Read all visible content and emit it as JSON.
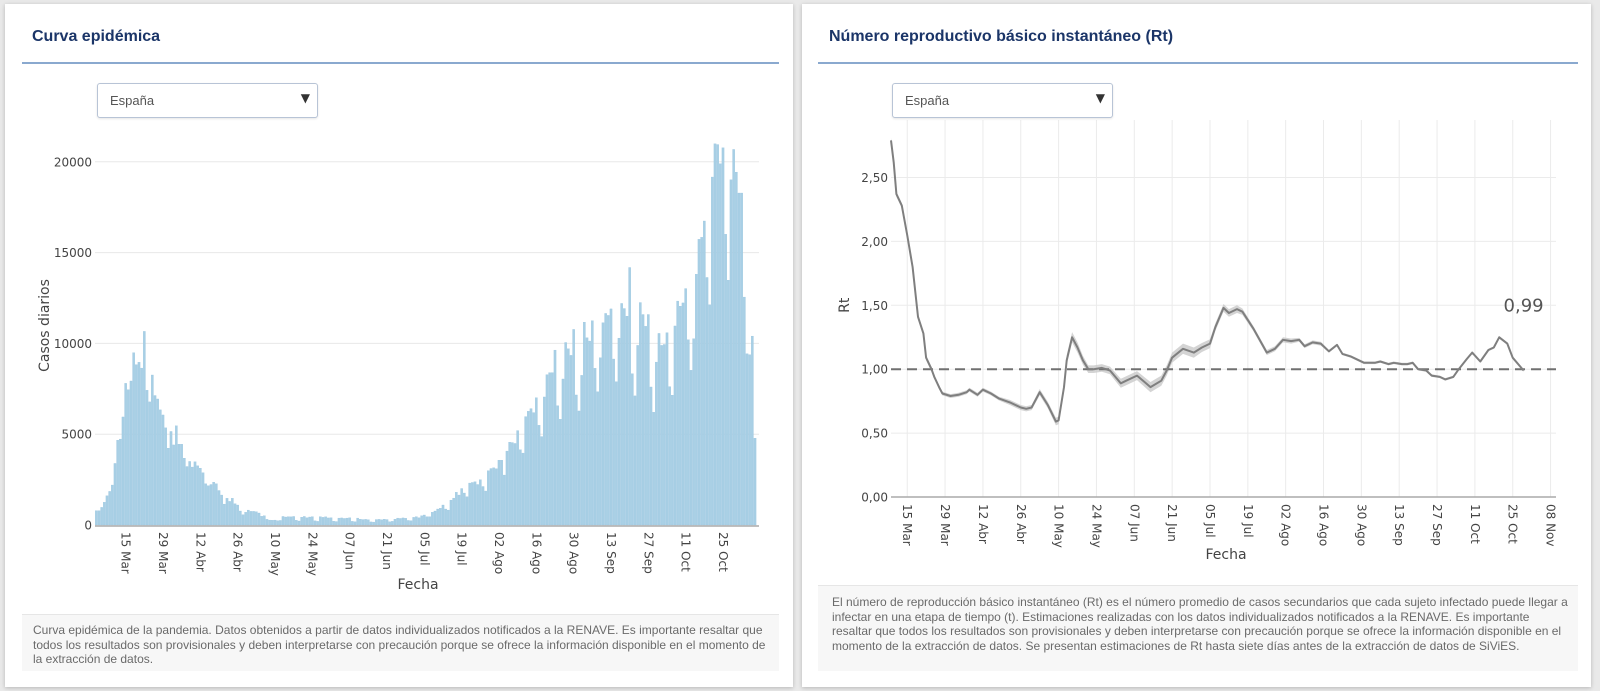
{
  "icons": {
    "dropdown_arrow": "▼"
  },
  "panels": [
    {
      "region_select": {
        "value": "España"
      },
      "caption": "Curva epidémica de la pandemia. Datos obtenidos a partir de datos individualizados notificados a la RENAVE. Es importante resaltar que todos los resultados son provisionales y deben interpretarse con precaución porque se ofrece la información disponible en el momento de la extracción de datos."
    },
    {
      "region_select": {
        "value": "España"
      },
      "caption": "El número de reproducción básico instantáneo (Rt) es el número promedio de casos secundarios que cada sujeto infectado puede llegar a infectar en una etapa de tiempo (t). Estimaciones realizadas con los datos individualizados notificados a la RENAVE. Es importante resaltar que todos los resultados son provisionales y deben interpretarse con precaución porque se ofrece la información disponible en el momento de la extracción de datos. Se presentan estimaciones de Rt hasta siete días antes de la extracción de datos de SiViES."
    }
  ],
  "chart_data": [
    {
      "type": "bar",
      "title": "Curva epidémica",
      "xlabel": "Fecha",
      "ylabel": "Casos diarios",
      "x_unit": "days since 04 Mar (one bar per day)",
      "xlim": [
        -0.5,
        248.5
      ],
      "ylim": [
        0,
        21200
      ],
      "grid": "horizontal",
      "bar_color": "#a8cfe5",
      "yticks": [
        {
          "value": 0,
          "label": "0"
        },
        {
          "value": 5000,
          "label": "5000"
        },
        {
          "value": 10000,
          "label": "10000"
        },
        {
          "value": 15000,
          "label": "15000"
        },
        {
          "value": 20000,
          "label": "20000"
        }
      ],
      "xticks": [
        {
          "day": 11,
          "label": "15 Mar"
        },
        {
          "day": 25,
          "label": "29 Mar"
        },
        {
          "day": 39,
          "label": "12 Abr"
        },
        {
          "day": 53,
          "label": "26 Abr"
        },
        {
          "day": 67,
          "label": "10 May"
        },
        {
          "day": 81,
          "label": "24 May"
        },
        {
          "day": 95,
          "label": "07 Jun"
        },
        {
          "day": 109,
          "label": "21 Jun"
        },
        {
          "day": 123,
          "label": "05 Jul"
        },
        {
          "day": 137,
          "label": "19 Jul"
        },
        {
          "day": 151,
          "label": "02 Ago"
        },
        {
          "day": 165,
          "label": "16 Ago"
        },
        {
          "day": 179,
          "label": "30 Ago"
        },
        {
          "day": 193,
          "label": "13 Sep"
        },
        {
          "day": 207,
          "label": "27 Sep"
        },
        {
          "day": 221,
          "label": "11 Oct"
        },
        {
          "day": 235,
          "label": "25 Oct"
        }
      ],
      "values": [
        790,
        790,
        970,
        1250,
        1610,
        1850,
        2200,
        3390,
        4670,
        4730,
        5950,
        7800,
        7450,
        7930,
        9490,
        8830,
        8960,
        8640,
        10660,
        7420,
        6780,
        8260,
        7130,
        6940,
        6340,
        6060,
        5350,
        4230,
        5150,
        4410,
        5460,
        4450,
        4450,
        3680,
        3220,
        3500,
        3190,
        3480,
        3260,
        3130,
        2880,
        2270,
        2160,
        2230,
        2360,
        2270,
        1900,
        1650,
        1150,
        1470,
        1300,
        1470,
        1170,
        1100,
        770,
        570,
        700,
        820,
        750,
        750,
        730,
        660,
        480,
        510,
        310,
        270,
        260,
        270,
        240,
        250,
        470,
        440,
        460,
        450,
        470,
        260,
        220,
        430,
        470,
        400,
        440,
        460,
        230,
        200,
        460,
        420,
        450,
        390,
        400,
        210,
        190,
        380,
        390,
        360,
        380,
        400,
        200,
        180,
        380,
        320,
        300,
        310,
        290,
        170,
        160,
        300,
        310,
        290,
        320,
        300,
        180,
        200,
        320,
        380,
        360,
        390,
        370,
        250,
        240,
        420,
        460,
        400,
        510,
        550,
        460,
        460,
        700,
        770,
        880,
        920,
        1100,
        880,
        820,
        1370,
        1480,
        1800,
        1650,
        2010,
        1760,
        1560,
        2310,
        2340,
        2380,
        2230,
        2490,
        2120,
        1870,
        2990,
        3110,
        3150,
        3100,
        3570,
        3570,
        2750,
        4070,
        4560,
        4540,
        4490,
        5200,
        4140,
        3960,
        5970,
        6260,
        6410,
        6190,
        7010,
        5490,
        4870,
        7050,
        8280,
        8390,
        8390,
        9630,
        6570,
        5820,
        8040,
        10050,
        9700,
        9340,
        10770,
        7160,
        6280,
        8240,
        11170,
        10310,
        10130,
        11250,
        8630,
        7340,
        9210,
        11140,
        11650,
        11540,
        11900,
        9140,
        7890,
        10290,
        12200,
        11920,
        11500,
        14180,
        8330,
        7110,
        9890,
        12250,
        11590,
        10940,
        11590,
        7600,
        6210,
        8970,
        10550,
        9890,
        9940,
        10590,
        7620,
        7150,
        10960,
        12330,
        12050,
        12230,
        13020,
        10200,
        8520,
        10260,
        13810,
        15730,
        15840,
        16740,
        13630,
        12130,
        19160,
        20990,
        20950,
        19890,
        20770,
        16010,
        13480,
        19010,
        20680,
        19430,
        18280,
        18280,
        12550,
        9430,
        9380,
        10400,
        4780
      ]
    },
    {
      "type": "line",
      "title": "Número reproductivo básico instantáneo (Rt)",
      "xlabel": "Fecha",
      "ylabel": "Rt",
      "x_unit": "days since 15 Mar",
      "xlim": [
        -6,
        240
      ],
      "ylim": [
        0,
        2.95
      ],
      "grid": "both",
      "line_color": "#7f7f7f",
      "band_color": "#c9c9c9",
      "reference_line": {
        "value": 1.0,
        "style": "dashed"
      },
      "annotation": {
        "text": "0,99",
        "anchor": "last-point"
      },
      "yticks": [
        {
          "value": 0,
          "label": "0,00"
        },
        {
          "value": 0.5,
          "label": "0,50"
        },
        {
          "value": 1.0,
          "label": "1,00"
        },
        {
          "value": 1.5,
          "label": "1,50"
        },
        {
          "value": 2.0,
          "label": "2,00"
        },
        {
          "value": 2.5,
          "label": "2,50"
        }
      ],
      "xticks": [
        {
          "day": 0,
          "label": "15 Mar"
        },
        {
          "day": 14,
          "label": "29 Mar"
        },
        {
          "day": 28,
          "label": "12 Abr"
        },
        {
          "day": 42,
          "label": "26 Abr"
        },
        {
          "day": 56,
          "label": "10 May"
        },
        {
          "day": 70,
          "label": "24 May"
        },
        {
          "day": 84,
          "label": "07 Jun"
        },
        {
          "day": 98,
          "label": "21 Jun"
        },
        {
          "day": 112,
          "label": "05 Jul"
        },
        {
          "day": 126,
          "label": "19 Jul"
        },
        {
          "day": 140,
          "label": "02 Ago"
        },
        {
          "day": 154,
          "label": "16 Ago"
        },
        {
          "day": 168,
          "label": "30 Ago"
        },
        {
          "day": 182,
          "label": "13 Sep"
        },
        {
          "day": 196,
          "label": "27 Sep"
        },
        {
          "day": 210,
          "label": "11 Oct"
        },
        {
          "day": 224,
          "label": "25 Oct"
        },
        {
          "day": 238,
          "label": "08 Nov"
        }
      ],
      "series": [
        {
          "name": "Rt",
          "points_format": "[day, rt, ci_halfwidth]",
          "points": [
            [
              -6,
              2.79,
              0.02
            ],
            [
              -5,
              2.62,
              0.02
            ],
            [
              -4,
              2.37,
              0.02
            ],
            [
              -2,
              2.28,
              0.02
            ],
            [
              0,
              2.05,
              0.02
            ],
            [
              2,
              1.8,
              0.02
            ],
            [
              4,
              1.41,
              0.02
            ],
            [
              6,
              1.28,
              0.02
            ],
            [
              7,
              1.09,
              0.02
            ],
            [
              9,
              1.0,
              0.02
            ],
            [
              10,
              0.94,
              0.015
            ],
            [
              12,
              0.85,
              0.015
            ],
            [
              13,
              0.81,
              0.015
            ],
            [
              16,
              0.79,
              0.015
            ],
            [
              19,
              0.8,
              0.015
            ],
            [
              22,
              0.82,
              0.015
            ],
            [
              23,
              0.84,
              0.015
            ],
            [
              26,
              0.8,
              0.015
            ],
            [
              28,
              0.84,
              0.015
            ],
            [
              31,
              0.81,
              0.015
            ],
            [
              34,
              0.77,
              0.015
            ],
            [
              38,
              0.74,
              0.02
            ],
            [
              42,
              0.7,
              0.02
            ],
            [
              44,
              0.69,
              0.02
            ],
            [
              46,
              0.7,
              0.02
            ],
            [
              49,
              0.82,
              0.025
            ],
            [
              52,
              0.72,
              0.025
            ],
            [
              55,
              0.59,
              0.03
            ],
            [
              56,
              0.6,
              0.03
            ],
            [
              58,
              0.86,
              0.035
            ],
            [
              59,
              1.07,
              0.04
            ],
            [
              61,
              1.25,
              0.04
            ],
            [
              63,
              1.17,
              0.04
            ],
            [
              65,
              1.07,
              0.035
            ],
            [
              67,
              1.0,
              0.03
            ],
            [
              69,
              1.0,
              0.03
            ],
            [
              72,
              1.01,
              0.03
            ],
            [
              75,
              0.99,
              0.03
            ],
            [
              79,
              0.89,
              0.035
            ],
            [
              81,
              0.91,
              0.035
            ],
            [
              85,
              0.95,
              0.035
            ],
            [
              90,
              0.86,
              0.04
            ],
            [
              94,
              0.91,
              0.04
            ],
            [
              96,
              0.99,
              0.04
            ],
            [
              98,
              1.09,
              0.04
            ],
            [
              102,
              1.16,
              0.04
            ],
            [
              106,
              1.13,
              0.04
            ],
            [
              109,
              1.17,
              0.035
            ],
            [
              112,
              1.2,
              0.035
            ],
            [
              114,
              1.33,
              0.03
            ],
            [
              117,
              1.48,
              0.03
            ],
            [
              119,
              1.44,
              0.03
            ],
            [
              122,
              1.47,
              0.03
            ],
            [
              124,
              1.45,
              0.025
            ],
            [
              128,
              1.32,
              0.02
            ],
            [
              133,
              1.13,
              0.02
            ],
            [
              136,
              1.16,
              0.02
            ],
            [
              139,
              1.23,
              0.02
            ],
            [
              142,
              1.22,
              0.02
            ],
            [
              145,
              1.23,
              0.015
            ],
            [
              147,
              1.18,
              0.015
            ],
            [
              150,
              1.21,
              0.015
            ],
            [
              153,
              1.2,
              0.015
            ],
            [
              156,
              1.14,
              0.01
            ],
            [
              159,
              1.19,
              0.01
            ],
            [
              161,
              1.12,
              0.01
            ],
            [
              164,
              1.1,
              0.01
            ],
            [
              169,
              1.05,
              0.01
            ],
            [
              173,
              1.05,
              0.01
            ],
            [
              175,
              1.06,
              0.01
            ],
            [
              178,
              1.04,
              0.01
            ],
            [
              180,
              1.05,
              0.01
            ],
            [
              183,
              1.04,
              0.01
            ],
            [
              185,
              1.04,
              0.01
            ],
            [
              187,
              1.05,
              0.01
            ],
            [
              189,
              1.0,
              0.01
            ],
            [
              192,
              0.99,
              0.01
            ],
            [
              194,
              0.95,
              0.01
            ],
            [
              197,
              0.94,
              0.01
            ],
            [
              199,
              0.92,
              0.01
            ],
            [
              202,
              0.94,
              0.01
            ],
            [
              204,
              1.0,
              0.01
            ],
            [
              207,
              1.08,
              0.01
            ],
            [
              209,
              1.13,
              0.01
            ],
            [
              212,
              1.06,
              0.01
            ],
            [
              215,
              1.15,
              0.01
            ],
            [
              217,
              1.17,
              0.01
            ],
            [
              219,
              1.25,
              0.01
            ],
            [
              222,
              1.2,
              0.01
            ],
            [
              224,
              1.09,
              0.01
            ],
            [
              228,
              0.99,
              0.01
            ]
          ]
        }
      ]
    }
  ]
}
